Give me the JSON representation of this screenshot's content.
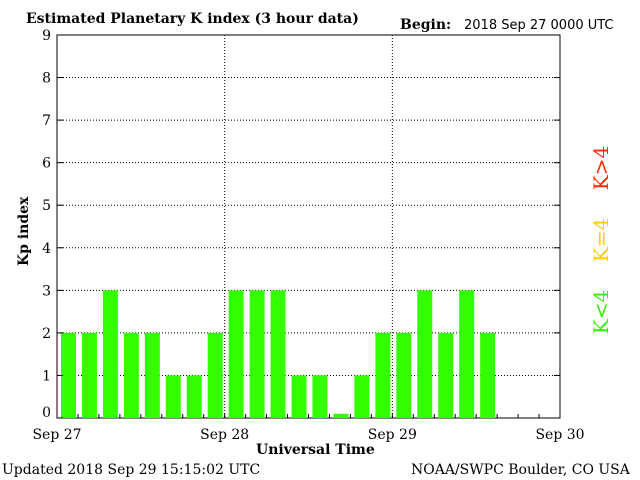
{
  "chart_data": {
    "type": "bar",
    "title": "Estimated Planetary K index (3 hour data)",
    "begin_label": "Begin:",
    "begin_value": "2018 Sep 27 0000 UTC",
    "xlabel": "Universal Time",
    "ylabel": "Kp index",
    "ylim": [
      0,
      9
    ],
    "yticks": [
      "0",
      "1",
      "2",
      "3",
      "4",
      "5",
      "6",
      "7",
      "8",
      "9"
    ],
    "xticks": [
      "Sep 27",
      "Sep 28",
      "Sep 29",
      "Sep 30"
    ],
    "slots_total": 24,
    "values": [
      2,
      2,
      3,
      2,
      2,
      1,
      1,
      2,
      3,
      3,
      3,
      1,
      1,
      0.1,
      1,
      2,
      2,
      3,
      2,
      3,
      2
    ],
    "grid": true,
    "legend_placement": "right",
    "legend": [
      {
        "label": "K>4",
        "color": "#ff2a00"
      },
      {
        "label": "K=4",
        "color": "#ffcc00"
      },
      {
        "label": "K<4",
        "color": "#33ee00"
      }
    ],
    "bar_color": "#33ff00"
  },
  "footer": {
    "updated": "Updated 2018 Sep 29 15:15:02 UTC",
    "source": "NOAA/SWPC Boulder, CO USA"
  }
}
